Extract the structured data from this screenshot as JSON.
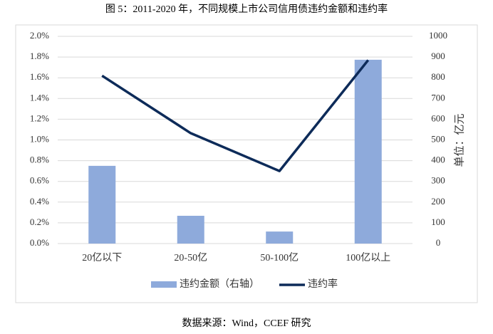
{
  "chart_data": {
    "type": "bar_line",
    "title": "图 5：2011-2020 年，不同规模上市公司信用债违约金额和违约率",
    "y2label": "单位：亿元",
    "source": "数据来源：Wind，CCEF 研究",
    "categories": [
      "20亿以下",
      "20-50亿",
      "50-100亿",
      "100亿以上"
    ],
    "series": [
      {
        "name": "违约金额（右轴）",
        "type": "bar",
        "axis": "y2",
        "color": "#8eaadb",
        "values": [
          375,
          134,
          58,
          887
        ]
      },
      {
        "name": "违约率",
        "type": "line",
        "color": "#0d2b59",
        "values": [
          1.62,
          1.065,
          0.7,
          1.77
        ]
      }
    ],
    "ylim": [
      0,
      2.0
    ],
    "yticks": [
      {
        "value": 0,
        "label": "0.0%"
      },
      {
        "value": 0.2,
        "label": "0.2%"
      },
      {
        "value": 0.4,
        "label": "0.4%"
      },
      {
        "value": 0.6,
        "label": "0.6%"
      },
      {
        "value": 0.8,
        "label": "0.8%"
      },
      {
        "value": 1.0,
        "label": "1.0%"
      },
      {
        "value": 1.2,
        "label": "1.2%"
      },
      {
        "value": 1.4,
        "label": "1.4%"
      },
      {
        "value": 1.6,
        "label": "1.6%"
      },
      {
        "value": 1.8,
        "label": "1.8%"
      },
      {
        "value": 2.0,
        "label": "2.0%"
      }
    ],
    "y2lim": [
      0,
      1000
    ],
    "y2ticks": [
      0,
      100,
      200,
      300,
      400,
      500,
      600,
      700,
      800,
      900,
      1000
    ],
    "grid": true
  }
}
